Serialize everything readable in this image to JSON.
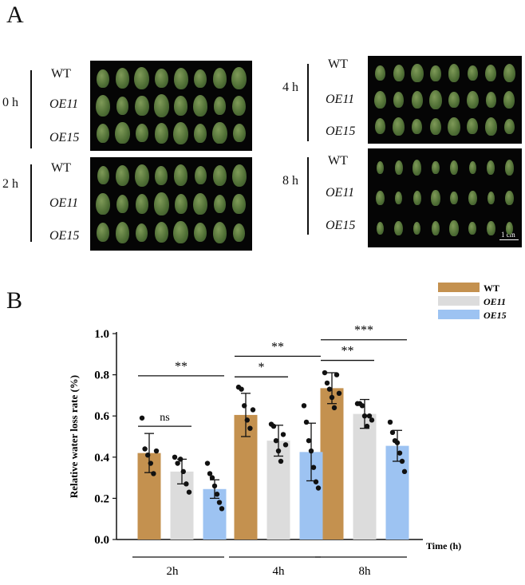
{
  "panel_a": {
    "letter": "A",
    "blocks": [
      {
        "time": "0 h",
        "rows": [
          "WT",
          "OE11",
          "OE15"
        ],
        "leaves": [
          8,
          8,
          8
        ]
      },
      {
        "time": "2 h",
        "rows": [
          "WT",
          "OE11",
          "OE15"
        ],
        "leaves": [
          8,
          8,
          8
        ]
      },
      {
        "time": "4 h",
        "rows": [
          "WT",
          "OE11",
          "OE15"
        ],
        "leaves": [
          8,
          8,
          8
        ]
      },
      {
        "time": "8 h",
        "rows": [
          "WT",
          "OE11",
          "OE15"
        ],
        "leaves": [
          8,
          8,
          8
        ]
      }
    ],
    "scale_label": "1 cm"
  },
  "panel_b": {
    "letter": "B"
  },
  "chart_data": {
    "type": "bar",
    "categories": [
      "2h",
      "4h",
      "8h"
    ],
    "series": [
      {
        "name": "WT",
        "color": "#c4914f",
        "values": [
          0.42,
          0.605,
          0.735
        ],
        "sd": [
          0.095,
          0.105,
          0.075
        ],
        "points": [
          [
            0.59,
            0.44,
            0.41,
            0.37,
            0.32,
            0.43
          ],
          [
            0.74,
            0.73,
            0.65,
            0.58,
            0.54,
            0.63
          ],
          [
            0.81,
            0.76,
            0.73,
            0.69,
            0.64,
            0.8,
            0.71
          ]
        ]
      },
      {
        "name": "OE11",
        "color": "#dcdcdc",
        "values": [
          0.33,
          0.48,
          0.61
        ],
        "sd": [
          0.06,
          0.075,
          0.07
        ],
        "points": [
          [
            0.4,
            0.37,
            0.39,
            0.33,
            0.27,
            0.23
          ],
          [
            0.56,
            0.55,
            0.48,
            0.43,
            0.38,
            0.51,
            0.46
          ],
          [
            0.66,
            0.66,
            0.65,
            0.6,
            0.55,
            0.6,
            0.58
          ]
        ]
      },
      {
        "name": "OE15",
        "color": "#9dc3f2",
        "values": [
          0.245,
          0.425,
          0.455
        ],
        "sd": [
          0.045,
          0.14,
          0.075
        ],
        "points": [
          [
            0.37,
            0.32,
            0.3,
            0.26,
            0.22,
            0.18,
            0.15
          ],
          [
            0.65,
            0.57,
            0.48,
            0.43,
            0.35,
            0.28,
            0.25
          ],
          [
            0.57,
            0.52,
            0.48,
            0.47,
            0.42,
            0.38,
            0.33
          ]
        ]
      }
    ],
    "ylim": [
      0,
      1.0
    ],
    "yticks": [
      "0.0",
      "0.2",
      "0.4",
      "0.6",
      "0.8",
      "1.0"
    ],
    "ylabel": "Relative water loss rate (%)",
    "xlabel": "Time (h)",
    "legend_position": "top-right",
    "significance": [
      {
        "group": 0,
        "from": 0,
        "to": 1,
        "level": 0.55,
        "label": "ns"
      },
      {
        "group": 0,
        "from": 0,
        "to": 2,
        "level": 0.795,
        "label": "**"
      },
      {
        "group": 1,
        "from": 0,
        "to": 1,
        "level": 0.79,
        "label": "*"
      },
      {
        "group": 1,
        "from": 0,
        "to": 2,
        "level": 0.89,
        "label": "**"
      },
      {
        "group": 2,
        "from": 0,
        "to": 1,
        "level": 0.87,
        "label": "**"
      },
      {
        "group": 2,
        "from": 0,
        "to": 2,
        "level": 0.97,
        "label": "***"
      }
    ]
  }
}
